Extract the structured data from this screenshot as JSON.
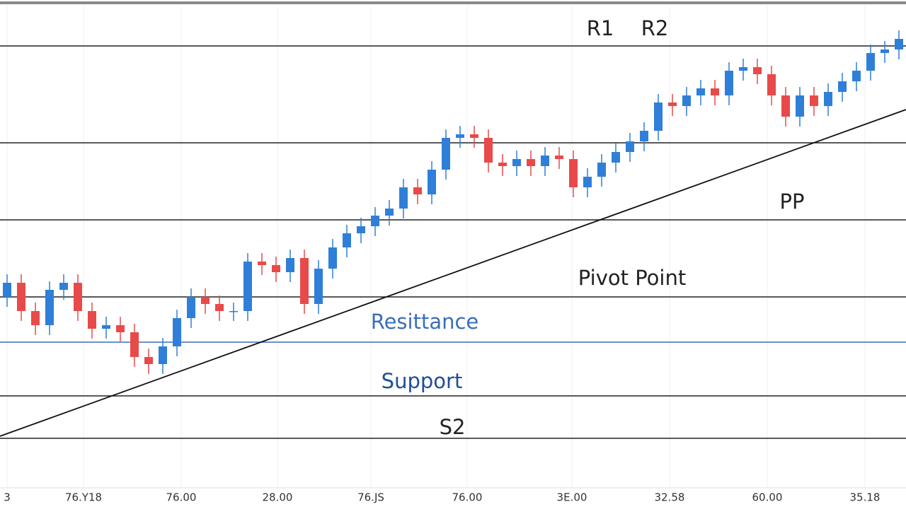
{
  "chart_data": {
    "type": "candlestick",
    "annotations": [
      "R1",
      "R2",
      "PP",
      "Pivot Point",
      "Resittance",
      "Support",
      "S2"
    ],
    "open": [
      270,
      290,
      250,
      230,
      280,
      290,
      250,
      225,
      230,
      220,
      185,
      175,
      200,
      240,
      270,
      260,
      250,
      250,
      320,
      315,
      305,
      325,
      260,
      310,
      340,
      360,
      370,
      385,
      395,
      425,
      415,
      450,
      495,
      500,
      495,
      460,
      455,
      465,
      455,
      470,
      465,
      425,
      440,
      460,
      475,
      490,
      505,
      545,
      540,
      555,
      565,
      555,
      590,
      595,
      585,
      555,
      525,
      555,
      540,
      560,
      575,
      590,
      615,
      620
    ],
    "high": [
      302,
      302,
      262,
      292,
      302,
      302,
      262,
      242,
      242,
      232,
      197,
      212,
      252,
      282,
      282,
      272,
      262,
      332,
      332,
      327,
      337,
      337,
      322,
      352,
      372,
      382,
      397,
      407,
      437,
      437,
      462,
      507,
      512,
      512,
      507,
      472,
      477,
      477,
      482,
      482,
      477,
      452,
      472,
      487,
      502,
      517,
      557,
      557,
      567,
      577,
      577,
      602,
      607,
      607,
      597,
      567,
      567,
      567,
      572,
      587,
      602,
      627,
      632,
      647
    ],
    "low": [
      256,
      236,
      216,
      216,
      266,
      236,
      211,
      211,
      206,
      171,
      161,
      161,
      186,
      226,
      246,
      236,
      236,
      236,
      301,
      291,
      291,
      246,
      246,
      296,
      326,
      346,
      356,
      371,
      381,
      401,
      401,
      436,
      481,
      481,
      446,
      441,
      441,
      441,
      441,
      451,
      411,
      411,
      426,
      446,
      461,
      476,
      491,
      526,
      526,
      541,
      541,
      541,
      576,
      571,
      541,
      511,
      511,
      526,
      526,
      546,
      561,
      576,
      601,
      606
    ],
    "close": [
      290,
      250,
      230,
      280,
      290,
      250,
      225,
      230,
      220,
      185,
      175,
      200,
      240,
      270,
      260,
      250,
      250,
      320,
      315,
      305,
      325,
      260,
      310,
      340,
      360,
      370,
      385,
      395,
      425,
      415,
      450,
      495,
      500,
      495,
      460,
      455,
      465,
      455,
      470,
      465,
      425,
      440,
      460,
      475,
      490,
      505,
      545,
      540,
      555,
      565,
      555,
      590,
      595,
      585,
      555,
      525,
      555,
      540,
      560,
      575,
      590,
      615,
      620,
      635
    ],
    "up_color": "#2f7fd8",
    "down_color": "#e84a4a",
    "levels": [
      625,
      488,
      379,
      270,
      206,
      130,
      70
    ],
    "level_colors": [
      "#222222",
      "#222222",
      "#222222",
      "#222222",
      "#3a6fb8",
      "#222222",
      "#222222"
    ],
    "trendline": [
      73,
      535
    ],
    "trendline_color": "#111111",
    "ylim": [
      0,
      690
    ],
    "xlim": [
      -0.5,
      63.5
    ],
    "xticks": [
      {
        "value": 0,
        "label": "3"
      },
      {
        "value": 5.4,
        "label": "76.Y18"
      },
      {
        "value": 12.3,
        "label": "76.00"
      },
      {
        "value": 19.1,
        "label": "28.00"
      },
      {
        "value": 25.7,
        "label": "76.JS"
      },
      {
        "value": 32.5,
        "label": "76.00"
      },
      {
        "value": 39.9,
        "label": "3E.00"
      },
      {
        "value": 46.8,
        "label": "32.58"
      },
      {
        "value": 53.7,
        "label": "60.00"
      },
      {
        "value": 60.6,
        "label": "35.18"
      }
    ],
    "grid": true
  }
}
